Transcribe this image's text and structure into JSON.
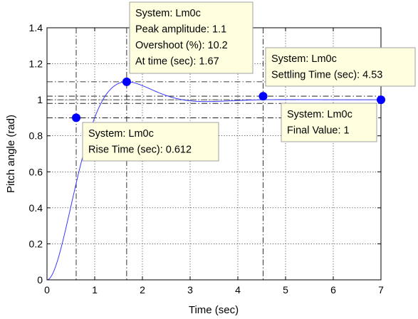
{
  "chart_data": {
    "type": "line",
    "xlabel": "Time (sec)",
    "ylabel": "Pitch angle (rad)",
    "xlim": [
      0,
      7
    ],
    "ylim": [
      0,
      1.4
    ],
    "x_ticks": [
      "0",
      "1",
      "2",
      "3",
      "4",
      "5",
      "6",
      "7"
    ],
    "y_ticks": [
      "0",
      "0.2",
      "0.4",
      "0.6",
      "0.8",
      "1",
      "1.2",
      "1.4"
    ],
    "grid": true,
    "series": [
      {
        "color": "#3a3aff",
        "step_response": {
          "final_value": 1.0,
          "peak_time": 1.67,
          "peak_amplitude": 1.1
        }
      }
    ],
    "markers": [
      {
        "id": "rise",
        "x": 0.612,
        "y": 0.9,
        "color": "#0000ff"
      },
      {
        "id": "peak",
        "x": 1.67,
        "y": 1.1,
        "color": "#0000ff"
      },
      {
        "id": "settling",
        "x": 4.53,
        "y": 1.02,
        "color": "#0000ff"
      },
      {
        "id": "final",
        "x": 7.0,
        "y": 1.0,
        "color": "#0000ff"
      }
    ],
    "reference_lines": {
      "horizontal": [
        0.9,
        0.98,
        1.0,
        1.02,
        1.1
      ],
      "vertical": [
        0.612,
        1.67,
        4.53
      ]
    },
    "annotations": [
      {
        "id": "peak",
        "lines": [
          "System: Lm0c",
          "Peak amplitude: 1.1",
          "Overshoot (%): 10.2",
          "At time (sec): 1.67"
        ]
      },
      {
        "id": "settling",
        "lines": [
          "System: Lm0c",
          "Settling Time (sec): 4.53"
        ]
      },
      {
        "id": "final",
        "lines": [
          "System: Lm0c",
          "Final Value: 1"
        ]
      },
      {
        "id": "rise",
        "lines": [
          "System: Lm0c",
          "Rise Time (sec): 0.612"
        ]
      }
    ],
    "annotation_style": {
      "background": "#ffffe0",
      "border": "#a0a0a0"
    }
  }
}
